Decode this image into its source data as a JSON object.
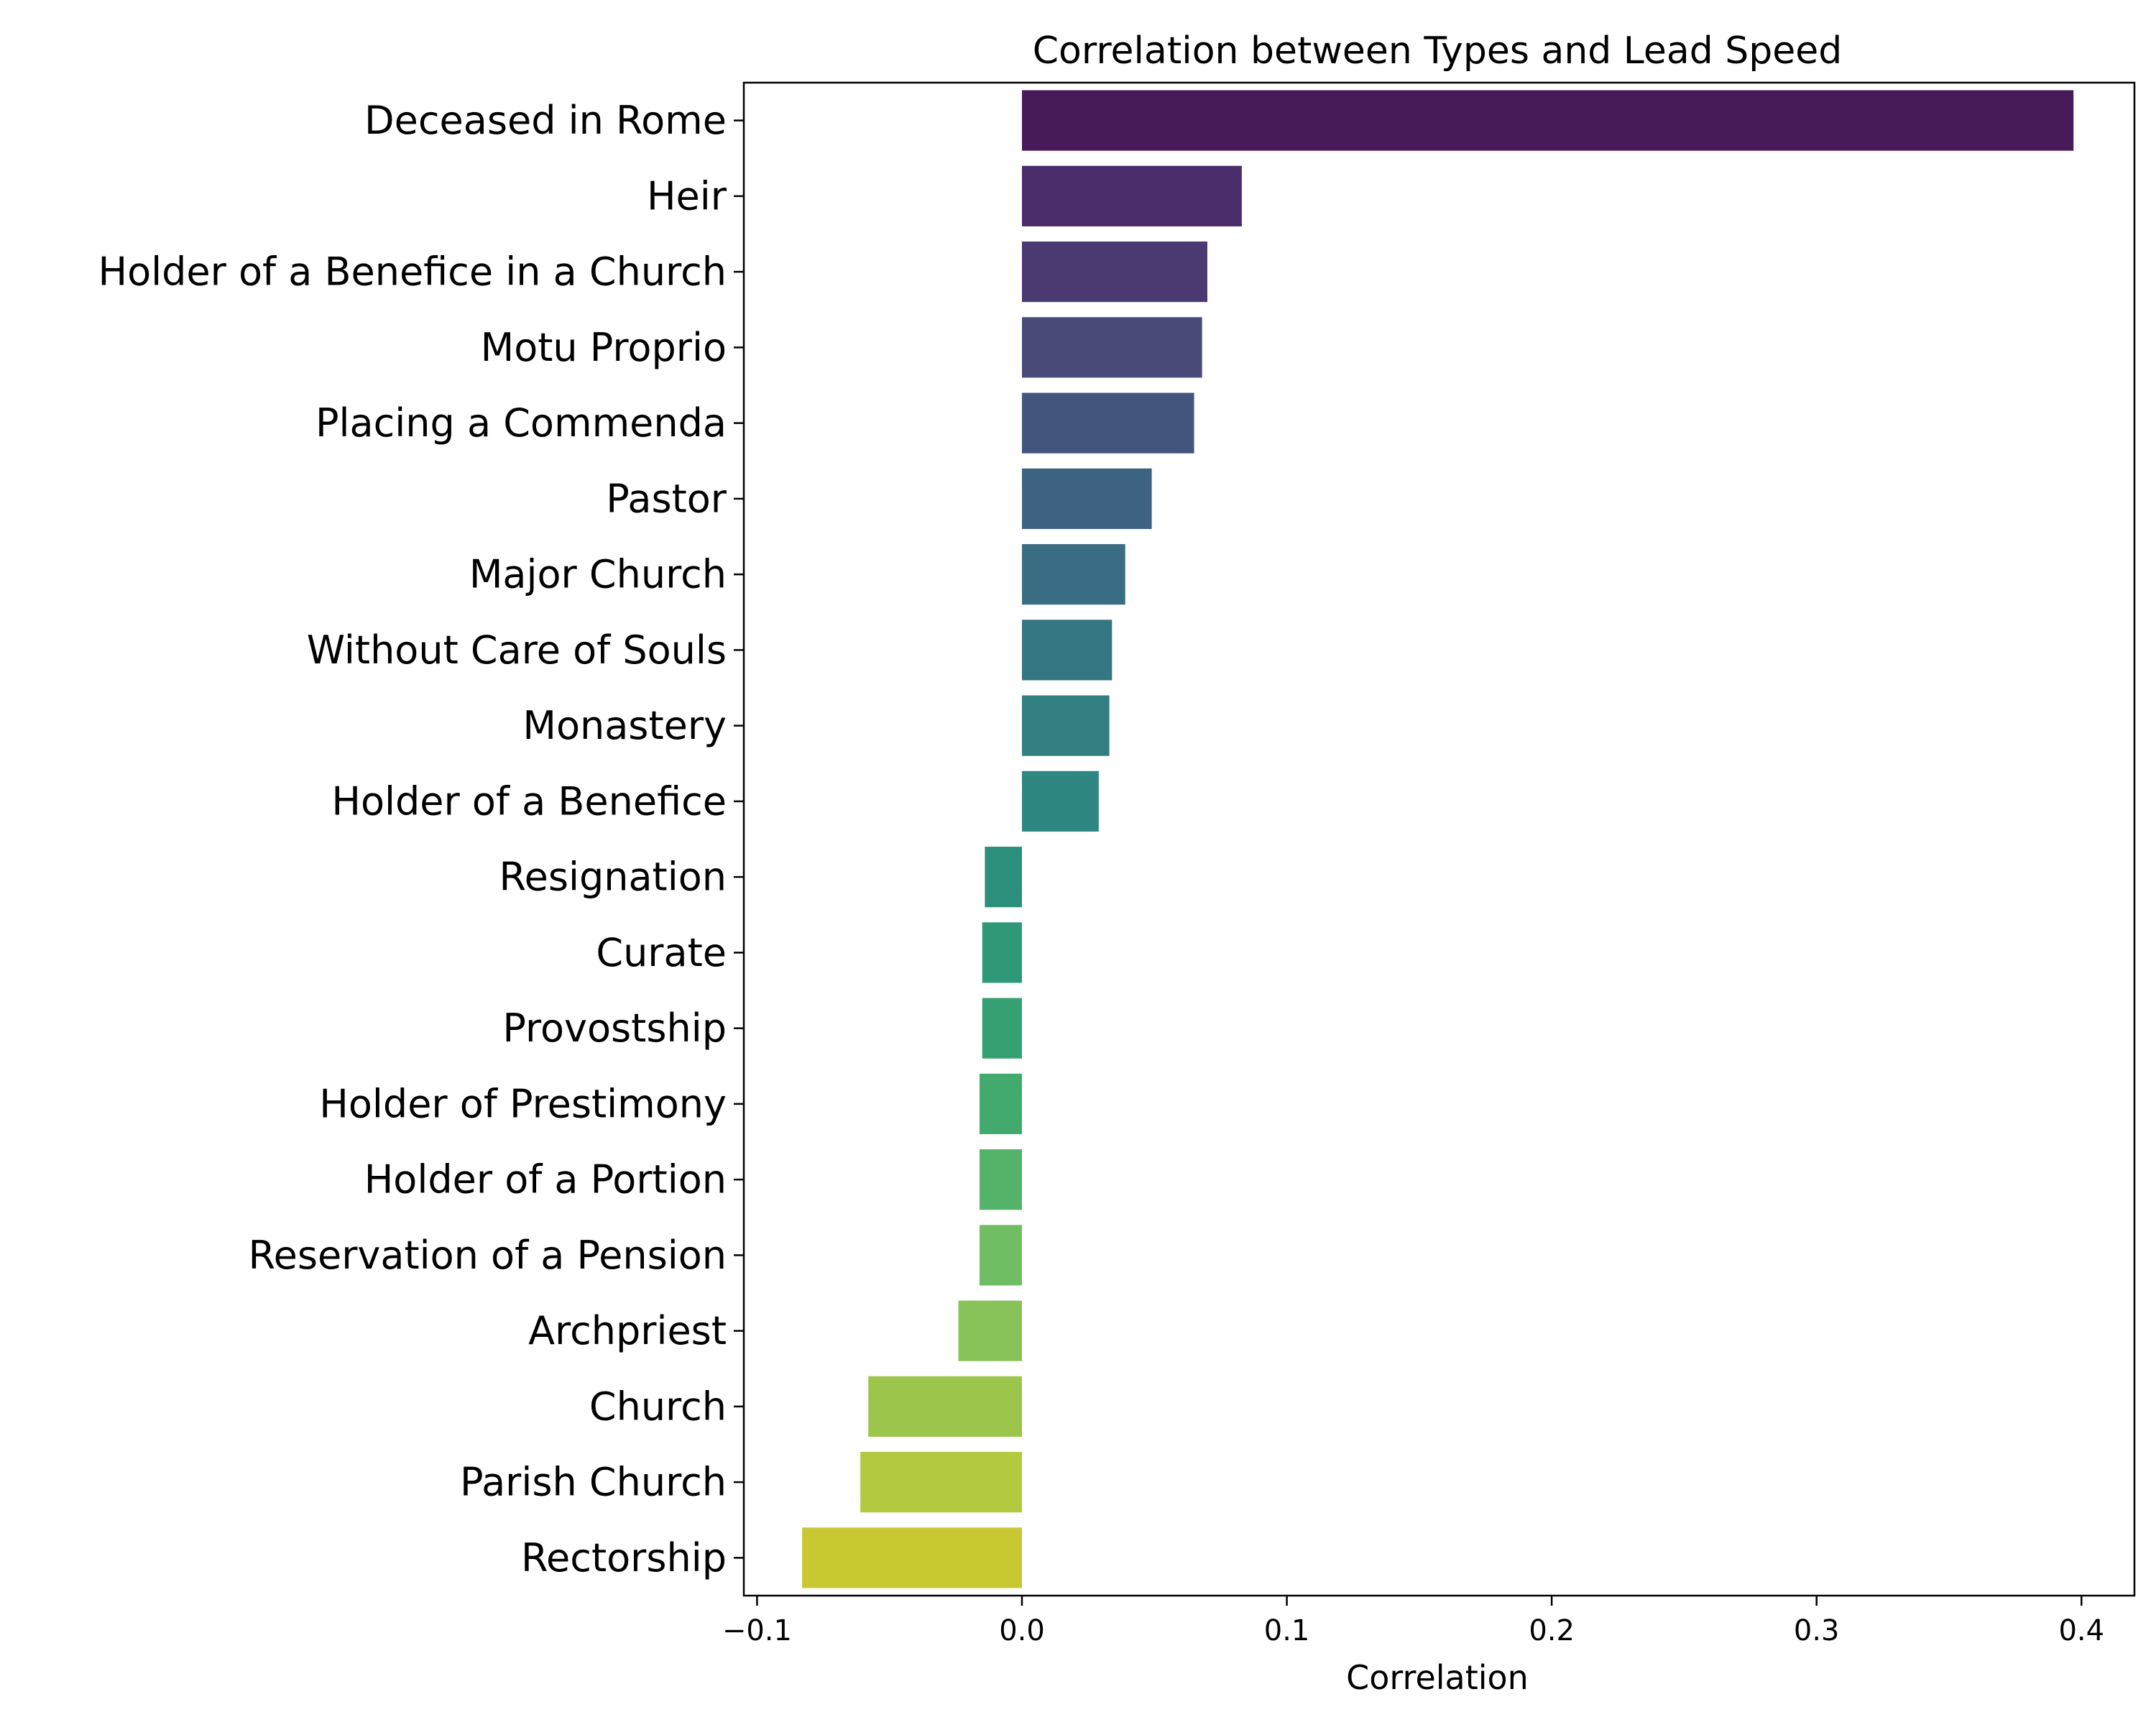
{
  "chart_data": {
    "type": "bar",
    "orientation": "horizontal",
    "title": "Correlation between Types and Lead Speed",
    "xlabel": "Correlation",
    "ylabel": "",
    "xlim": [
      -0.105,
      0.42
    ],
    "xticks": [
      -0.1,
      0.0,
      0.1,
      0.2,
      0.3,
      0.4
    ],
    "xtick_labels": [
      "−0.1",
      "0.0",
      "0.1",
      "0.2",
      "0.3",
      "0.4"
    ],
    "grid": false,
    "colormap": "viridis",
    "categories": [
      "Deceased in Rome",
      "Heir",
      "Holder of a Benefice in a Church",
      "Motu Proprio",
      "Placing a Commenda",
      "Pastor",
      "Major Church",
      "Without Care of Souls",
      "Monastery",
      "Holder of a Benefice",
      "Resignation",
      "Curate",
      "Provostship",
      "Holder of Prestimony",
      "Holder of a Portion",
      "Reservation of a Pension",
      "Archpriest",
      "Church",
      "Parish Church",
      "Rectorship"
    ],
    "values": [
      0.397,
      0.083,
      0.07,
      0.068,
      0.065,
      0.049,
      0.039,
      0.034,
      0.033,
      0.029,
      -0.014,
      -0.015,
      -0.015,
      -0.016,
      -0.016,
      -0.016,
      -0.024,
      -0.058,
      -0.061,
      -0.083
    ],
    "colors": [
      "#471a5a",
      "#4a2c6a",
      "#4b3a72",
      "#4a4a7a",
      "#43557e",
      "#3d6282",
      "#396d84",
      "#357683",
      "#327f82",
      "#2e8780",
      "#2c8f7c",
      "#2f9878",
      "#35a173",
      "#43aa6e",
      "#55b269",
      "#71bd64",
      "#88c35a",
      "#9cc54c",
      "#b3c93f",
      "#c8c833"
    ]
  }
}
